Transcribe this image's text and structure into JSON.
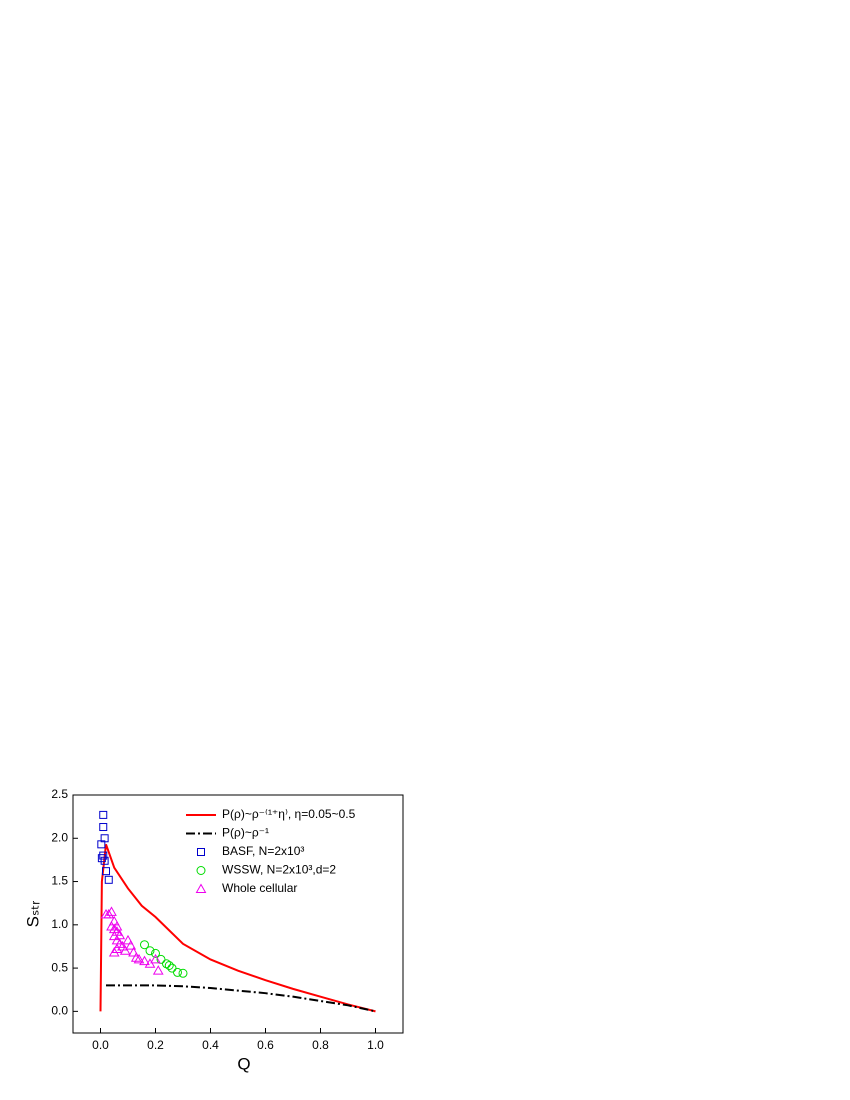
{
  "chart_data": {
    "type": "line",
    "x_label": "Q",
    "y_label": "Sₛₜᵣ",
    "xlim": [
      -0.1,
      1.1
    ],
    "ylim": [
      -0.25,
      2.5
    ],
    "xticks": [
      {
        "value": 0,
        "label": "0.0"
      },
      0.2,
      0.4,
      0.6,
      0.8,
      {
        "value": 1,
        "label": "1.0"
      }
    ],
    "yticks": [
      {
        "value": 0,
        "label": "0.0"
      },
      0.5,
      {
        "value": 1,
        "label": "1.0"
      },
      1.5,
      {
        "value": 2,
        "label": "2.0"
      },
      2.5
    ],
    "legend": "upper right",
    "series": [
      {
        "name": "P(ρ)~ρ⁻⁽¹⁺η⁾, η=0.05~0.5",
        "color": "#ff0000",
        "style": "solid",
        "marker": "none",
        "x": [
          0,
          0.005,
          0.02,
          0.05,
          0.1,
          0.15,
          0.2,
          0.3,
          0.4,
          0.5,
          0.6,
          0.7,
          0.8,
          0.9,
          1.0
        ],
        "values": [
          0,
          1.5,
          1.93,
          1.66,
          1.42,
          1.22,
          1.09,
          0.78,
          0.6,
          0.47,
          0.36,
          0.26,
          0.17,
          0.08,
          0.0
        ]
      },
      {
        "name": "P(ρ)~ρ⁻¹",
        "color": "#000000",
        "style": "dashdot",
        "marker": "none",
        "x": [
          0.02,
          0.1,
          0.2,
          0.3,
          0.4,
          0.5,
          0.6,
          0.7,
          0.8,
          0.9,
          1.0
        ],
        "values": [
          0.3,
          0.3,
          0.3,
          0.29,
          0.27,
          0.24,
          0.21,
          0.17,
          0.12,
          0.07,
          0.0
        ]
      },
      {
        "name": "BASF, N=2x10³",
        "color": "#0000cc",
        "style": "none",
        "marker": "square",
        "x": [
          0.01,
          0.01,
          0.015,
          0.003,
          0.01,
          0.005,
          0.015,
          0.02,
          0.03
        ],
        "values": [
          2.27,
          2.13,
          2.0,
          1.93,
          1.8,
          1.77,
          1.74,
          1.62,
          1.52
        ]
      },
      {
        "name": "WSSW, N=2x10³,d=2",
        "color": "#00dd00",
        "style": "none",
        "marker": "circle",
        "x": [
          0.16,
          0.18,
          0.2,
          0.22,
          0.24,
          0.25,
          0.26,
          0.28,
          0.3
        ],
        "values": [
          0.77,
          0.7,
          0.67,
          0.6,
          0.55,
          0.53,
          0.5,
          0.45,
          0.44
        ]
      },
      {
        "name": "Whole cellular",
        "color": "#ee00ee",
        "style": "none",
        "marker": "triangle",
        "x": [
          0.02,
          0.04,
          0.03,
          0.05,
          0.04,
          0.05,
          0.06,
          0.05,
          0.06,
          0.07,
          0.06,
          0.05,
          0.08,
          0.1,
          0.09,
          0.11,
          0.12,
          0.13,
          0.14,
          0.16,
          0.18,
          0.2,
          0.21,
          0.07,
          0.06
        ],
        "values": [
          1.12,
          1.15,
          1.12,
          1.04,
          0.98,
          0.95,
          0.92,
          0.87,
          0.82,
          0.78,
          0.72,
          0.68,
          0.75,
          0.82,
          0.7,
          0.76,
          0.68,
          0.62,
          0.6,
          0.58,
          0.55,
          0.6,
          0.47,
          0.88,
          0.98
        ]
      }
    ]
  }
}
